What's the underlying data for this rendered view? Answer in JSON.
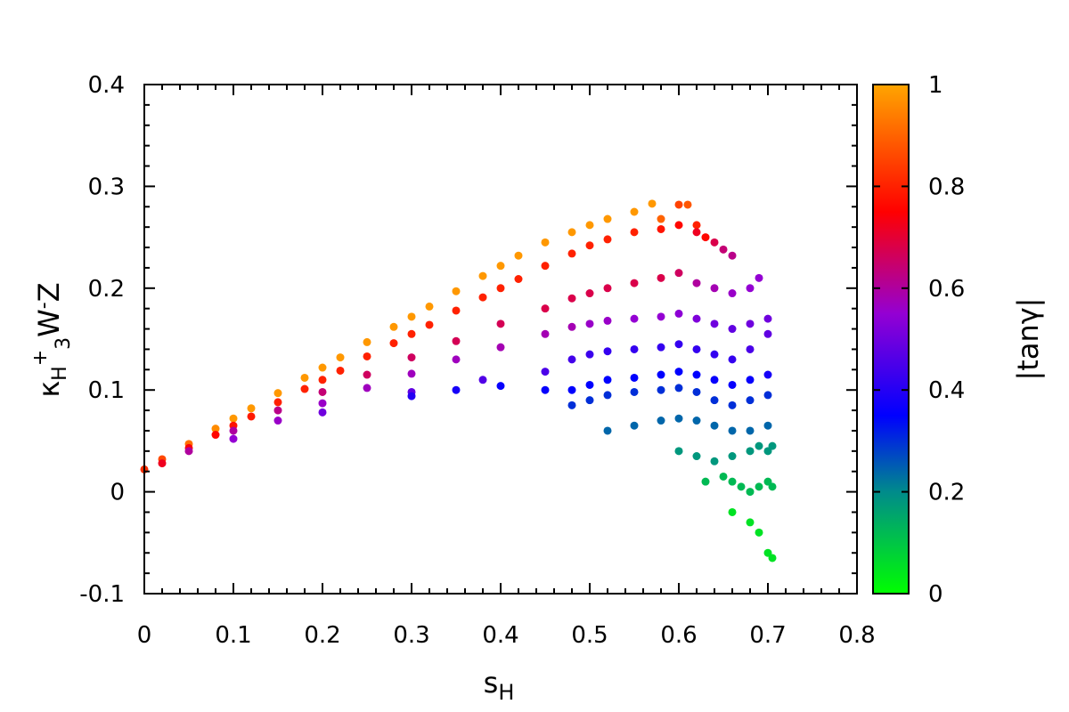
{
  "chart_data": {
    "type": "scatter",
    "title": "",
    "xlabel": {
      "main": "s",
      "sub": "H"
    },
    "ylabel": {
      "main": "κ",
      "sub1": "H",
      "sup1": "+",
      "sub2": "3",
      "base2": "W",
      "sup2": "-",
      "base3": "Z"
    },
    "xlim": [
      0,
      0.8
    ],
    "ylim": [
      -0.1,
      0.4
    ],
    "xticks": [
      0,
      0.1,
      0.2,
      0.3,
      0.4,
      0.5,
      0.6,
      0.7,
      0.8
    ],
    "xtick_labels": [
      "0",
      "0.1",
      "0.2",
      "0.3",
      "0.4",
      "0.5",
      "0.6",
      "0.7",
      "0.8"
    ],
    "yticks": [
      -0.1,
      0,
      0.1,
      0.2,
      0.3,
      0.4
    ],
    "ytick_labels": [
      "-0.1",
      "0",
      "0.1",
      "0.2",
      "0.3",
      "0.4"
    ],
    "colorbar": {
      "label": "|tanγ|",
      "range": [
        0,
        1
      ],
      "ticks": [
        0,
        0.2,
        0.4,
        0.6,
        0.8,
        1
      ],
      "tick_labels": [
        "0",
        "0.2",
        "0.4",
        "0.6",
        "0.8",
        "1"
      ],
      "colormap": [
        {
          "value": 0.0,
          "color": "#00ff00"
        },
        {
          "value": 0.2,
          "color": "#008b8b"
        },
        {
          "value": 0.35,
          "color": "#0000ff"
        },
        {
          "value": 0.55,
          "color": "#9400d3"
        },
        {
          "value": 0.75,
          "color": "#ff0000"
        },
        {
          "value": 1.0,
          "color": "#ffa500"
        }
      ]
    },
    "grid": false,
    "series": [
      {
        "x": [
          0.0,
          0.02,
          0.05,
          0.08,
          0.1,
          0.12,
          0.15,
          0.18,
          0.2,
          0.22,
          0.25,
          0.28,
          0.3,
          0.32,
          0.35,
          0.38,
          0.4,
          0.42,
          0.45,
          0.48,
          0.5,
          0.52,
          0.55,
          0.57,
          0.58,
          0.6,
          0.61,
          0.62,
          0.63,
          0.02,
          0.05,
          0.08,
          0.1,
          0.12,
          0.15,
          0.18,
          0.2,
          0.22,
          0.25,
          0.28,
          0.3,
          0.32,
          0.35,
          0.38,
          0.4,
          0.42,
          0.45,
          0.48,
          0.5,
          0.52,
          0.55,
          0.58,
          0.6,
          0.62,
          0.64,
          0.65,
          0.66,
          0.05,
          0.1,
          0.15,
          0.2,
          0.25,
          0.3,
          0.35,
          0.4,
          0.45,
          0.48,
          0.5,
          0.52,
          0.55,
          0.58,
          0.6,
          0.62,
          0.64,
          0.66,
          0.68,
          0.69,
          0.1,
          0.15,
          0.2,
          0.25,
          0.3,
          0.35,
          0.4,
          0.45,
          0.48,
          0.5,
          0.52,
          0.55,
          0.58,
          0.6,
          0.62,
          0.64,
          0.66,
          0.68,
          0.7,
          0.2,
          0.3,
          0.38,
          0.45,
          0.48,
          0.5,
          0.52,
          0.55,
          0.58,
          0.6,
          0.62,
          0.64,
          0.66,
          0.68,
          0.7,
          0.3,
          0.35,
          0.4,
          0.45,
          0.48,
          0.5,
          0.52,
          0.55,
          0.58,
          0.6,
          0.62,
          0.64,
          0.66,
          0.68,
          0.7,
          0.48,
          0.5,
          0.52,
          0.55,
          0.58,
          0.6,
          0.62,
          0.64,
          0.66,
          0.68,
          0.7,
          0.52,
          0.55,
          0.58,
          0.6,
          0.62,
          0.64,
          0.66,
          0.68,
          0.7,
          0.6,
          0.62,
          0.64,
          0.66,
          0.68,
          0.69,
          0.7,
          0.705,
          0.63,
          0.65,
          0.66,
          0.67,
          0.68,
          0.69,
          0.7,
          0.705,
          0.66,
          0.68,
          0.69,
          0.7,
          0.705
        ],
        "y": [
          0.022,
          0.032,
          0.047,
          0.062,
          0.072,
          0.082,
          0.097,
          0.112,
          0.122,
          0.132,
          0.147,
          0.162,
          0.172,
          0.182,
          0.197,
          0.212,
          0.222,
          0.232,
          0.245,
          0.255,
          0.262,
          0.268,
          0.275,
          0.283,
          0.268,
          0.282,
          0.282,
          0.262,
          0.25,
          0.028,
          0.043,
          0.056,
          0.065,
          0.074,
          0.088,
          0.101,
          0.11,
          0.119,
          0.133,
          0.146,
          0.155,
          0.164,
          0.178,
          0.191,
          0.2,
          0.209,
          0.222,
          0.234,
          0.242,
          0.248,
          0.255,
          0.258,
          0.262,
          0.255,
          0.245,
          0.238,
          0.232,
          0.04,
          0.06,
          0.08,
          0.098,
          0.115,
          0.132,
          0.148,
          0.165,
          0.18,
          0.19,
          0.195,
          0.2,
          0.205,
          0.21,
          0.215,
          0.205,
          0.2,
          0.195,
          0.2,
          0.21,
          0.052,
          0.07,
          0.087,
          0.102,
          0.116,
          0.13,
          0.142,
          0.155,
          0.162,
          0.165,
          0.168,
          0.17,
          0.172,
          0.175,
          0.17,
          0.165,
          0.16,
          0.165,
          0.17,
          0.078,
          0.098,
          0.11,
          0.118,
          0.13,
          0.135,
          0.138,
          0.14,
          0.142,
          0.145,
          0.14,
          0.135,
          0.13,
          0.14,
          0.155,
          0.094,
          0.1,
          0.104,
          0.1,
          0.1,
          0.105,
          0.11,
          0.112,
          0.115,
          0.118,
          0.115,
          0.11,
          0.105,
          0.11,
          0.115,
          0.085,
          0.09,
          0.095,
          0.098,
          0.1,
          0.102,
          0.098,
          0.09,
          0.085,
          0.09,
          0.095,
          0.06,
          0.065,
          0.07,
          0.072,
          0.07,
          0.065,
          0.06,
          0.06,
          0.065,
          0.04,
          0.035,
          0.03,
          0.035,
          0.04,
          0.045,
          0.04,
          0.045,
          0.01,
          0.015,
          0.01,
          0.005,
          0.0,
          0.005,
          0.01,
          0.005,
          -0.02,
          -0.03,
          -0.04,
          -0.06,
          -0.065
        ],
        "c": [
          0.82,
          0.86,
          0.92,
          0.96,
          0.98,
          0.98,
          0.98,
          0.98,
          0.98,
          0.98,
          0.98,
          0.98,
          0.98,
          0.98,
          0.98,
          0.98,
          0.98,
          0.98,
          0.98,
          0.98,
          0.98,
          0.98,
          0.98,
          0.98,
          0.9,
          0.85,
          0.88,
          0.8,
          0.76,
          0.72,
          0.74,
          0.76,
          0.78,
          0.79,
          0.8,
          0.8,
          0.8,
          0.8,
          0.8,
          0.8,
          0.8,
          0.8,
          0.8,
          0.8,
          0.8,
          0.8,
          0.8,
          0.8,
          0.8,
          0.8,
          0.8,
          0.78,
          0.76,
          0.72,
          0.68,
          0.64,
          0.62,
          0.6,
          0.6,
          0.62,
          0.64,
          0.66,
          0.66,
          0.67,
          0.67,
          0.68,
          0.68,
          0.68,
          0.68,
          0.68,
          0.68,
          0.66,
          0.6,
          0.58,
          0.56,
          0.55,
          0.55,
          0.55,
          0.56,
          0.56,
          0.57,
          0.57,
          0.57,
          0.58,
          0.58,
          0.58,
          0.56,
          0.56,
          0.55,
          0.55,
          0.54,
          0.52,
          0.5,
          0.48,
          0.5,
          0.5,
          0.5,
          0.48,
          0.46,
          0.45,
          0.44,
          0.43,
          0.42,
          0.42,
          0.42,
          0.42,
          0.42,
          0.42,
          0.42,
          0.45,
          0.48,
          0.4,
          0.38,
          0.36,
          0.36,
          0.35,
          0.35,
          0.35,
          0.35,
          0.35,
          0.35,
          0.35,
          0.36,
          0.36,
          0.36,
          0.38,
          0.3,
          0.3,
          0.3,
          0.3,
          0.3,
          0.3,
          0.3,
          0.3,
          0.3,
          0.3,
          0.3,
          0.24,
          0.24,
          0.24,
          0.24,
          0.24,
          0.24,
          0.24,
          0.24,
          0.24,
          0.18,
          0.18,
          0.18,
          0.18,
          0.18,
          0.18,
          0.18,
          0.18,
          0.12,
          0.12,
          0.12,
          0.12,
          0.12,
          0.12,
          0.12,
          0.12,
          0.05,
          0.05,
          0.05,
          0.05,
          0.05
        ]
      }
    ]
  }
}
